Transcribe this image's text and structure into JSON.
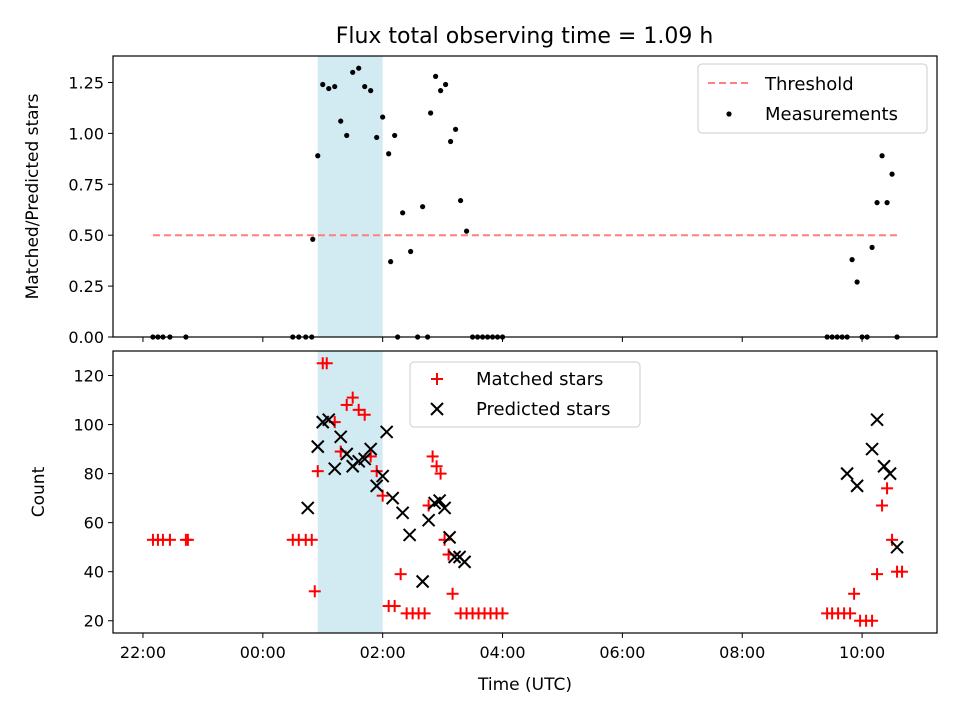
{
  "chart_data": [
    {
      "type": "scatter",
      "title": "Flux total observing time = 1.09 h",
      "ylabel": "Matched/Predicted stars",
      "xlabel": "",
      "xlim": [
        "21:30",
        "11:15"
      ],
      "ylim": [
        0,
        1.38
      ],
      "yticks": [
        "0.00",
        "0.25",
        "0.50",
        "0.75",
        "1.00",
        "1.25"
      ],
      "ytick_values": [
        0,
        0.25,
        0.5,
        0.75,
        1.0,
        1.25
      ],
      "xtick_values": [
        "22:00",
        "00:00",
        "02:00",
        "04:00",
        "06:00",
        "08:00",
        "10:00"
      ],
      "shaded_interval": {
        "start": "00:55",
        "end": "02:00",
        "color": "#add8e6"
      },
      "threshold": {
        "name": "Threshold",
        "y": 0.5,
        "x_start": "22:10",
        "x_end": "10:35",
        "color": "#ff7f7f",
        "style": "dashed"
      },
      "legend": {
        "placement": "upper right",
        "entries": [
          "Threshold",
          "Measurements"
        ]
      },
      "series": [
        {
          "name": "Measurements",
          "color": "#000000",
          "marker": "dot",
          "points": [
            [
              "22:10",
              0
            ],
            [
              "22:15",
              0
            ],
            [
              "22:20",
              0
            ],
            [
              "22:27",
              0
            ],
            [
              "22:43",
              0
            ],
            [
              "00:30",
              0
            ],
            [
              "00:36",
              0
            ],
            [
              "00:43",
              0
            ],
            [
              "00:49",
              0
            ],
            [
              "00:50",
              0.48
            ],
            [
              "00:55",
              0.89
            ],
            [
              "01:00",
              1.24
            ],
            [
              "01:06",
              1.22
            ],
            [
              "01:12",
              1.23
            ],
            [
              "01:18",
              1.06
            ],
            [
              "01:24",
              0.99
            ],
            [
              "01:30",
              1.3
            ],
            [
              "01:36",
              1.32
            ],
            [
              "01:42",
              1.23
            ],
            [
              "01:48",
              1.21
            ],
            [
              "01:54",
              0.98
            ],
            [
              "02:00",
              1.08
            ],
            [
              "02:06",
              0.9
            ],
            [
              "02:12",
              0.99
            ],
            [
              "02:08",
              0.37
            ],
            [
              "02:15",
              0
            ],
            [
              "02:20",
              0.61
            ],
            [
              "02:28",
              0.42
            ],
            [
              "02:35",
              0
            ],
            [
              "02:40",
              0.64
            ],
            [
              "02:45",
              0
            ],
            [
              "02:48",
              1.1
            ],
            [
              "02:53",
              1.28
            ],
            [
              "02:58",
              1.21
            ],
            [
              "03:03",
              1.24
            ],
            [
              "03:08",
              0.96
            ],
            [
              "03:13",
              1.02
            ],
            [
              "03:18",
              0.67
            ],
            [
              "03:24",
              0.52
            ],
            [
              "03:30",
              0
            ],
            [
              "03:35",
              0
            ],
            [
              "03:40",
              0
            ],
            [
              "03:45",
              0
            ],
            [
              "03:50",
              0
            ],
            [
              "03:55",
              0
            ],
            [
              "04:00",
              0
            ],
            [
              "09:25",
              0
            ],
            [
              "09:30",
              0
            ],
            [
              "09:35",
              0
            ],
            [
              "09:40",
              0
            ],
            [
              "09:45",
              0
            ],
            [
              "09:50",
              0.38
            ],
            [
              "09:55",
              0.27
            ],
            [
              "10:00",
              0
            ],
            [
              "10:05",
              0
            ],
            [
              "10:10",
              0.44
            ],
            [
              "10:15",
              0.66
            ],
            [
              "10:20",
              0.89
            ],
            [
              "10:25",
              0.66
            ],
            [
              "10:30",
              0.8
            ],
            [
              "10:35",
              0
            ]
          ]
        }
      ]
    },
    {
      "type": "scatter",
      "title": "",
      "ylabel": "Count",
      "xlabel": "Time (UTC)",
      "xlim": [
        "21:30",
        "11:15"
      ],
      "ylim": [
        15,
        130
      ],
      "yticks": [
        "20",
        "40",
        "60",
        "80",
        "100",
        "120"
      ],
      "ytick_values": [
        20,
        40,
        60,
        80,
        100,
        120
      ],
      "xticks": [
        "22:00",
        "00:00",
        "02:00",
        "04:00",
        "06:00",
        "08:00",
        "10:00"
      ],
      "xtick_values": [
        "22:00",
        "00:00",
        "02:00",
        "04:00",
        "06:00",
        "08:00",
        "10:00"
      ],
      "shaded_interval": {
        "start": "00:55",
        "end": "02:00",
        "color": "#add8e6"
      },
      "legend": {
        "placement": "upper center",
        "entries": [
          "Matched stars",
          "Predicted stars"
        ]
      },
      "series": [
        {
          "name": "Matched stars",
          "color": "#ff0000",
          "marker": "plus",
          "points": [
            [
              "22:10",
              53
            ],
            [
              "22:15",
              53
            ],
            [
              "22:20",
              53
            ],
            [
              "22:27",
              53
            ],
            [
              "22:43",
              53
            ],
            [
              "22:45",
              53
            ],
            [
              "00:30",
              53
            ],
            [
              "00:36",
              53
            ],
            [
              "00:43",
              53
            ],
            [
              "00:49",
              53
            ],
            [
              "00:52",
              32
            ],
            [
              "00:55",
              81
            ],
            [
              "01:00",
              125
            ],
            [
              "01:04",
              125
            ],
            [
              "01:12",
              101
            ],
            [
              "01:18",
              89
            ],
            [
              "01:24",
              108
            ],
            [
              "01:30",
              111
            ],
            [
              "01:36",
              106
            ],
            [
              "01:42",
              104
            ],
            [
              "01:48",
              87
            ],
            [
              "01:54",
              81
            ],
            [
              "02:00",
              71
            ],
            [
              "02:06",
              26
            ],
            [
              "02:12",
              26
            ],
            [
              "02:18",
              39
            ],
            [
              "02:24",
              23
            ],
            [
              "02:30",
              23
            ],
            [
              "02:36",
              23
            ],
            [
              "02:42",
              23
            ],
            [
              "02:46",
              67
            ],
            [
              "02:50",
              87
            ],
            [
              "02:54",
              83
            ],
            [
              "02:58",
              80
            ],
            [
              "03:02",
              53
            ],
            [
              "03:06",
              47
            ],
            [
              "03:10",
              31
            ],
            [
              "03:18",
              23
            ],
            [
              "03:24",
              23
            ],
            [
              "03:30",
              23
            ],
            [
              "03:36",
              23
            ],
            [
              "03:42",
              23
            ],
            [
              "03:48",
              23
            ],
            [
              "03:54",
              23
            ],
            [
              "04:00",
              23
            ],
            [
              "09:25",
              23
            ],
            [
              "09:30",
              23
            ],
            [
              "09:36",
              23
            ],
            [
              "09:42",
              23
            ],
            [
              "09:48",
              23
            ],
            [
              "09:52",
              31
            ],
            [
              "09:58",
              20
            ],
            [
              "10:04",
              20
            ],
            [
              "10:10",
              20
            ],
            [
              "10:15",
              39
            ],
            [
              "10:20",
              67
            ],
            [
              "10:25",
              74
            ],
            [
              "10:30",
              53
            ],
            [
              "10:35",
              40
            ],
            [
              "10:40",
              40
            ]
          ]
        },
        {
          "name": "Predicted stars",
          "color": "#000000",
          "marker": "x",
          "points": [
            [
              "00:45",
              66
            ],
            [
              "00:55",
              91
            ],
            [
              "01:00",
              101
            ],
            [
              "01:06",
              102
            ],
            [
              "01:12",
              82
            ],
            [
              "01:18",
              95
            ],
            [
              "01:24",
              88
            ],
            [
              "01:30",
              83
            ],
            [
              "01:36",
              85
            ],
            [
              "01:42",
              86
            ],
            [
              "01:48",
              90
            ],
            [
              "01:54",
              75
            ],
            [
              "02:00",
              79
            ],
            [
              "02:04",
              97
            ],
            [
              "02:10",
              70
            ],
            [
              "02:20",
              64
            ],
            [
              "02:27",
              55
            ],
            [
              "02:40",
              36
            ],
            [
              "02:46",
              61
            ],
            [
              "02:52",
              68
            ],
            [
              "02:57",
              69
            ],
            [
              "03:02",
              66
            ],
            [
              "03:07",
              54
            ],
            [
              "03:12",
              46
            ],
            [
              "03:17",
              46
            ],
            [
              "03:22",
              44
            ],
            [
              "09:45",
              80
            ],
            [
              "09:55",
              75
            ],
            [
              "10:10",
              90
            ],
            [
              "10:15",
              102
            ],
            [
              "10:22",
              83
            ],
            [
              "10:28",
              80
            ],
            [
              "10:35",
              50
            ]
          ]
        }
      ]
    }
  ]
}
